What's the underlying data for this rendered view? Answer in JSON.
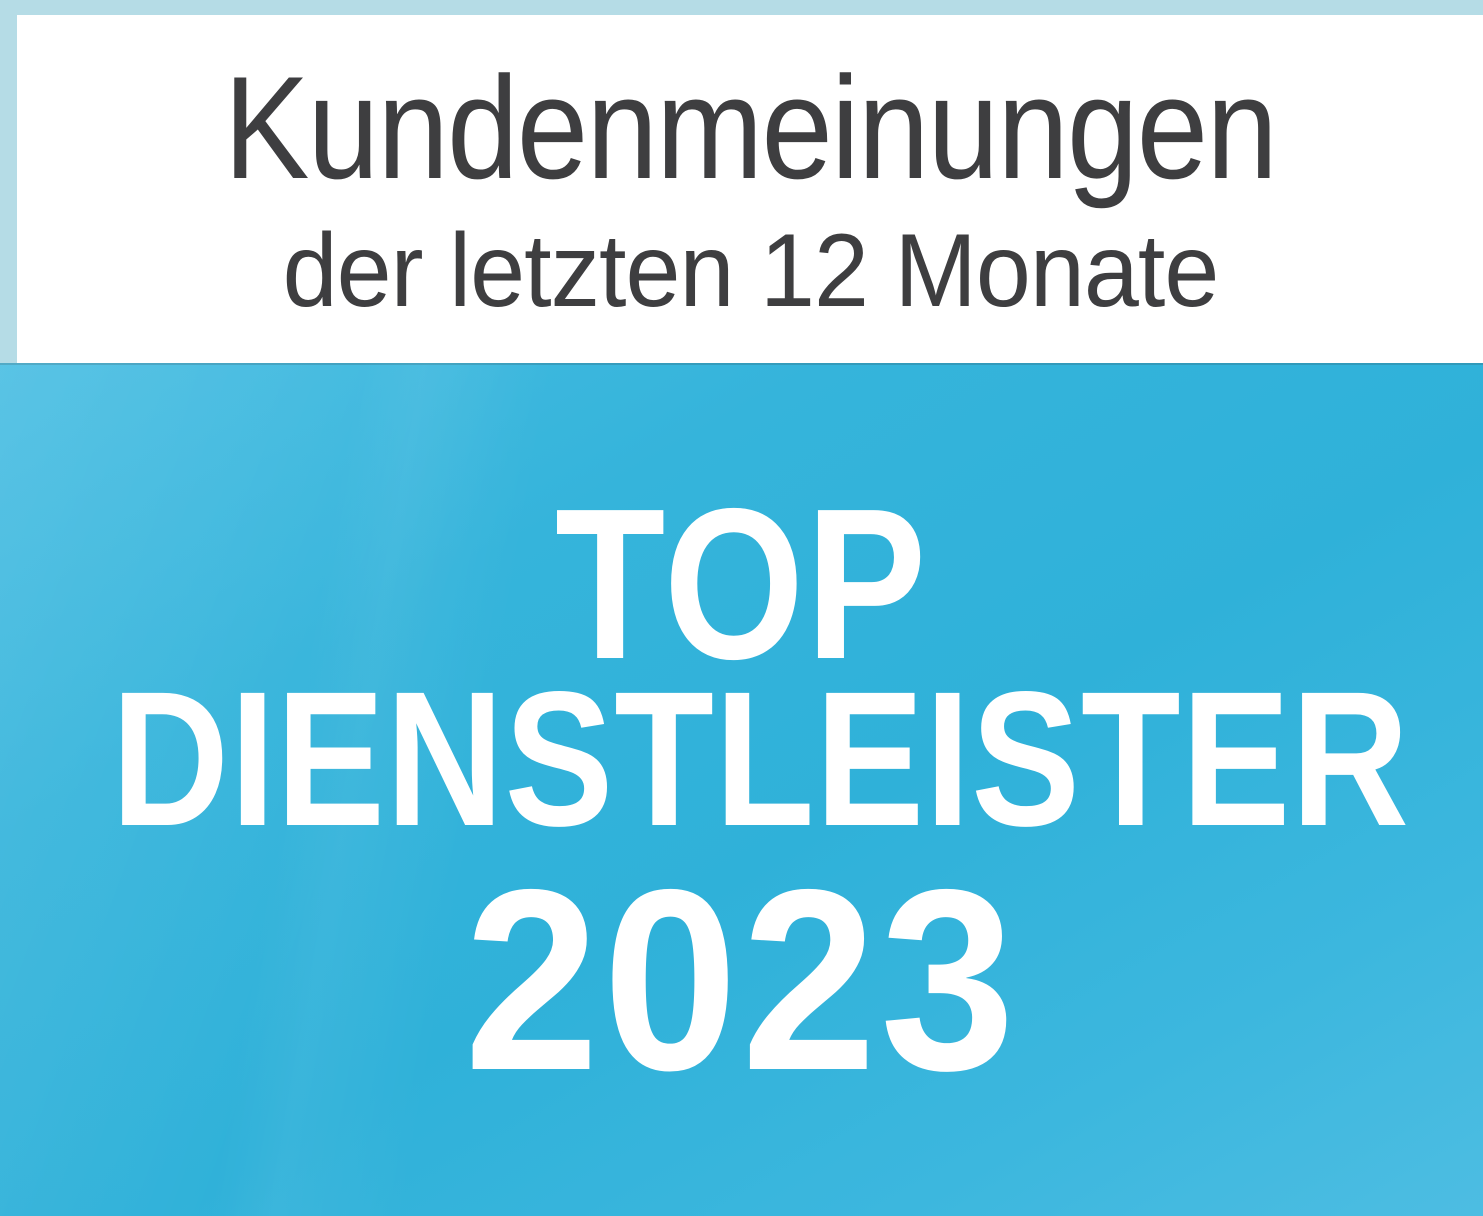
{
  "badge": {
    "header": {
      "line1": "Kundenmeinungen",
      "line2": "der letzten 12 Monate"
    },
    "award": {
      "line1": "TOP",
      "line2": "DIENSTLEISTER",
      "year": "2023"
    },
    "colors": {
      "frame": "#b5dce6",
      "header_panel": "#ffffff",
      "header_text": "#3e3e40",
      "blue_base": "#31b3db",
      "blue_light": "#4cbee3",
      "separator_line": "rgba(50,110,130,0.35)",
      "award_text": "#ffffff"
    }
  }
}
